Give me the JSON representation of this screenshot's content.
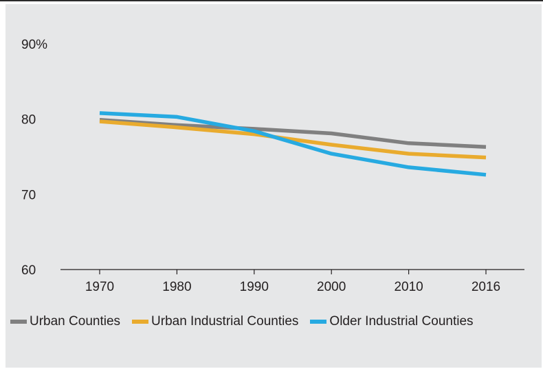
{
  "chart_data": {
    "type": "line",
    "title": "",
    "xlabel": "",
    "ylabel": "",
    "ylim": [
      60,
      90
    ],
    "y_ticks": [
      {
        "value": 90,
        "label": "90%"
      },
      {
        "value": 80,
        "label": "80"
      },
      {
        "value": 70,
        "label": "70"
      },
      {
        "value": 60,
        "label": "60"
      }
    ],
    "x": [
      "1970",
      "1980",
      "1990",
      "2000",
      "2010",
      "2016"
    ],
    "grid": false,
    "legend_position": "bottom",
    "series": [
      {
        "name": "Urban Counties",
        "color": "#808080",
        "values": [
          79.9,
          79.2,
          78.7,
          78.1,
          76.8,
          76.3
        ]
      },
      {
        "name": "Urban Industrial Counties",
        "color": "#e9ab2e",
        "values": [
          79.7,
          78.9,
          78.0,
          76.6,
          75.4,
          74.9
        ]
      },
      {
        "name": "Older Industrial Counties",
        "color": "#27aae1",
        "values": [
          80.8,
          80.3,
          78.4,
          75.4,
          73.6,
          72.6
        ]
      }
    ]
  }
}
